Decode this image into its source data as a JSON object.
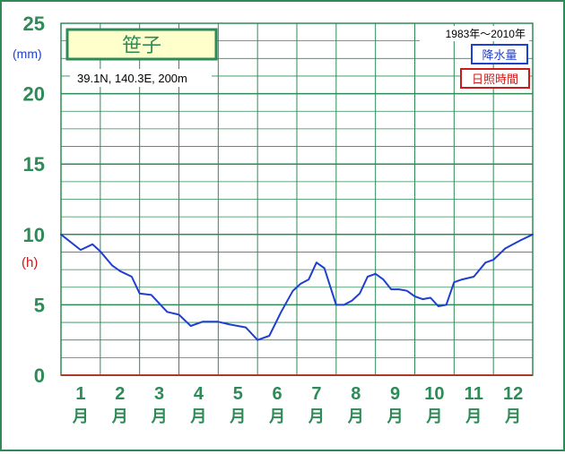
{
  "chart_data": {
    "type": "line",
    "title": "笹子",
    "subtitle": "39.1N,  140.3E,  200m",
    "period": "1983年〜2010年",
    "legend": [
      "降水量",
      "日照時間"
    ],
    "unit_precip": "(mm)",
    "unit_sunshine": "(h)",
    "y_ticks": [
      "0",
      "5",
      "10",
      "15",
      "20",
      "25"
    ],
    "ylim": [
      0,
      25
    ],
    "grid": true,
    "months": [
      "1",
      "2",
      "3",
      "4",
      "5",
      "6",
      "7",
      "8",
      "9",
      "10",
      "11",
      "12"
    ],
    "month_suffix": "月",
    "series": [
      {
        "color": "#1f3fd0",
        "x": [
          1.0,
          1.5,
          1.8,
          2.0,
          2.3,
          2.5,
          2.8,
          3.0,
          3.3,
          3.7,
          4.0,
          4.3,
          4.6,
          5.0,
          5.3,
          5.7,
          6.0,
          6.3,
          6.6,
          6.9,
          7.1,
          7.3,
          7.5,
          7.7,
          8.0,
          8.2,
          8.4,
          8.6,
          8.8,
          9.0,
          9.2,
          9.4,
          9.6,
          9.8,
          10.0,
          10.2,
          10.4,
          10.6,
          10.8,
          11.0,
          11.2,
          11.5,
          11.8,
          12.0,
          12.3,
          12.5,
          12.7,
          13.0
        ],
        "values": [
          10.0,
          8.9,
          9.3,
          8.8,
          7.8,
          7.4,
          7.0,
          5.8,
          5.7,
          4.5,
          4.3,
          3.5,
          3.8,
          3.8,
          3.6,
          3.4,
          2.5,
          2.8,
          4.5,
          6.0,
          6.5,
          6.8,
          8.0,
          7.6,
          5.0,
          5.0,
          5.3,
          5.8,
          7.0,
          7.2,
          6.8,
          6.1,
          6.1,
          6.0,
          5.6,
          5.4,
          5.5,
          4.9,
          5.0,
          6.6,
          6.8,
          7.0,
          8.0,
          8.2,
          9.0,
          9.3,
          9.6,
          10.0
        ]
      }
    ]
  }
}
